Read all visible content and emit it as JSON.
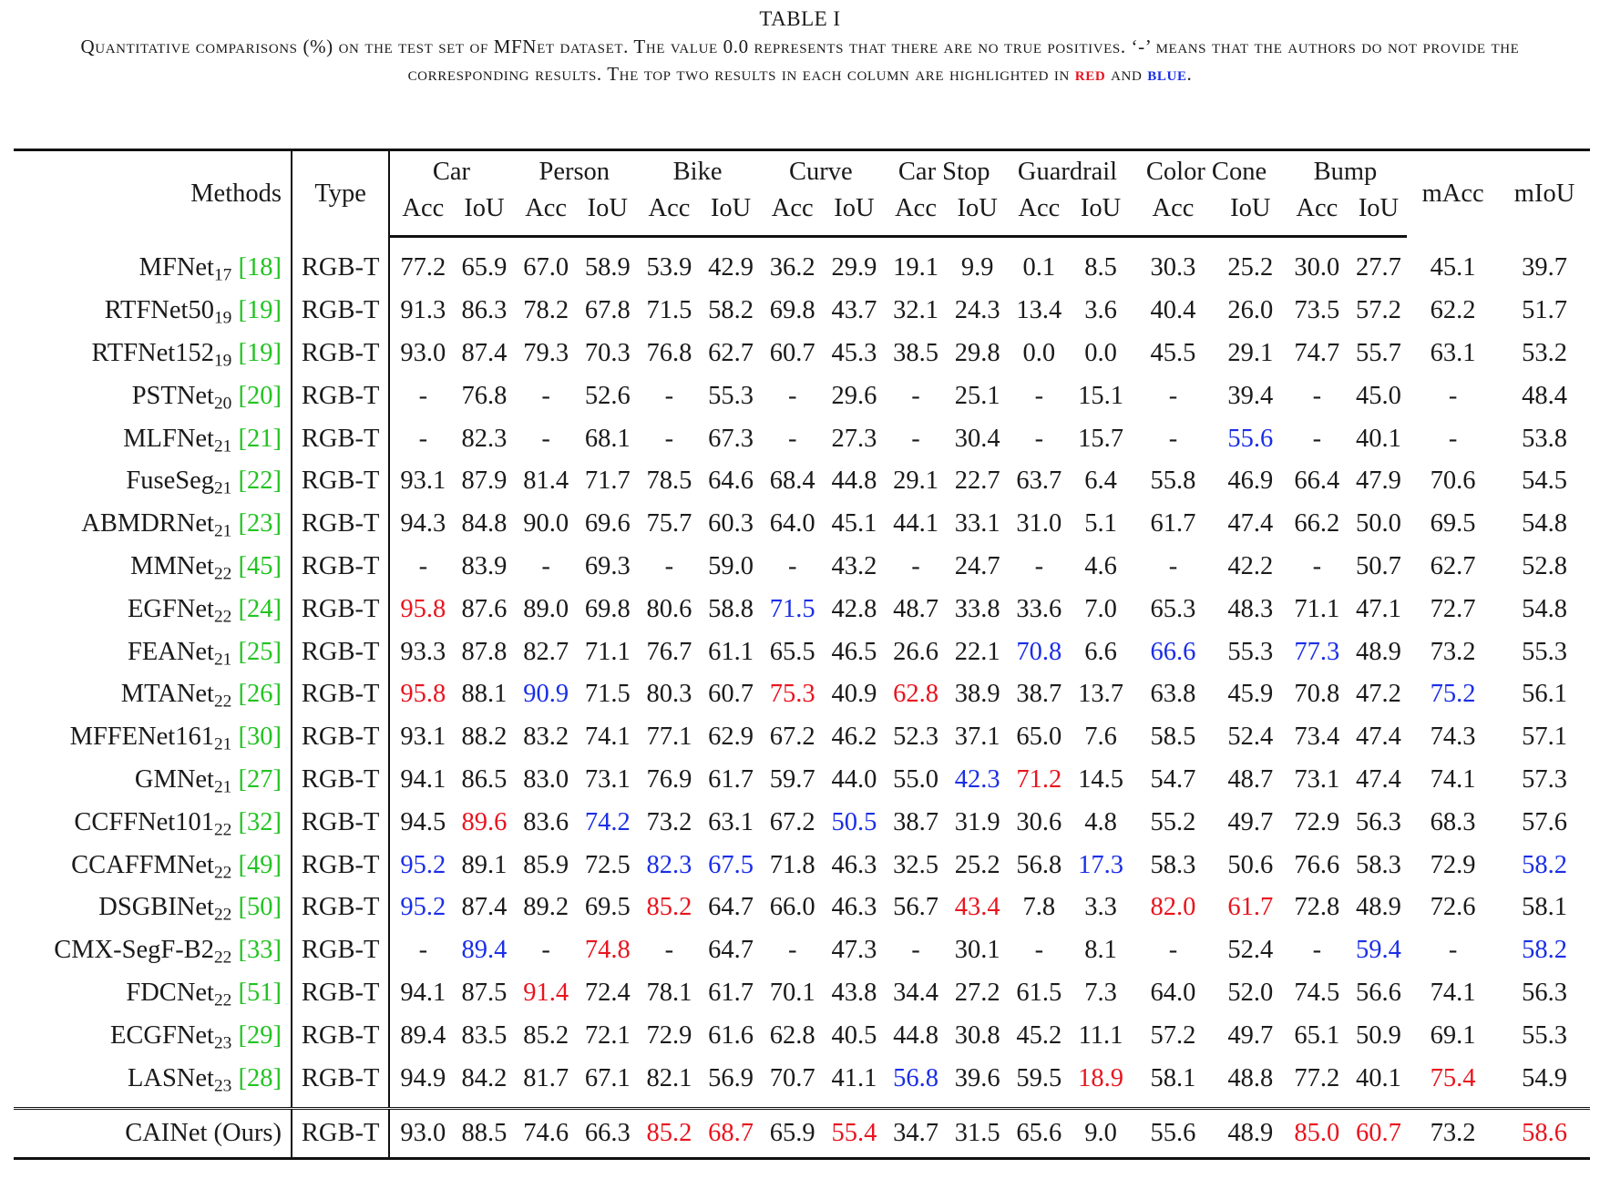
{
  "caption": {
    "label": "TABLE I",
    "text_main": "Quantitative comparisons (%) on the test set of MFNet dataset. The value 0.0 represents that there are no true positives. ‘-’ means that the authors do not provide the corresponding results. The top two results in each column are highlighted in",
    "red_word": "red",
    "and_word": "and",
    "blue_word": "blue",
    "period": "."
  },
  "header": {
    "methods": "Methods",
    "type": "Type",
    "categories": [
      "Car",
      "Person",
      "Bike",
      "Curve",
      "Car Stop",
      "Guardrail",
      "Color Cone",
      "Bump"
    ],
    "sub_acc": "Acc",
    "sub_iou": "IoU",
    "macc": "mAcc",
    "miou": "mIoU"
  },
  "colors": {
    "red": "#e8141e",
    "blue": "#1a2ee6",
    "cite_green": "#22c322"
  },
  "rows": [
    {
      "name": "MFNet",
      "sub": "17",
      "cite": "18",
      "type": "RGB-T",
      "values": [
        "77.2",
        "65.9",
        "67.0",
        "58.9",
        "53.9",
        "42.9",
        "36.2",
        "29.9",
        "19.1",
        "9.9",
        "0.1",
        "8.5",
        "30.3",
        "25.2",
        "30.0",
        "27.7",
        "45.1",
        "39.7"
      ],
      "hl": {}
    },
    {
      "name": "RTFNet50",
      "sub": "19",
      "cite": "19",
      "type": "RGB-T",
      "values": [
        "91.3",
        "86.3",
        "78.2",
        "67.8",
        "71.5",
        "58.2",
        "69.8",
        "43.7",
        "32.1",
        "24.3",
        "13.4",
        "3.6",
        "40.4",
        "26.0",
        "73.5",
        "57.2",
        "62.2",
        "51.7"
      ],
      "hl": {}
    },
    {
      "name": "RTFNet152",
      "sub": "19",
      "cite": "19",
      "type": "RGB-T",
      "values": [
        "93.0",
        "87.4",
        "79.3",
        "70.3",
        "76.8",
        "62.7",
        "60.7",
        "45.3",
        "38.5",
        "29.8",
        "0.0",
        "0.0",
        "45.5",
        "29.1",
        "74.7",
        "55.7",
        "63.1",
        "53.2"
      ],
      "hl": {}
    },
    {
      "name": "PSTNet",
      "sub": "20",
      "cite": "20",
      "type": "RGB-T",
      "values": [
        "-",
        "76.8",
        "-",
        "52.6",
        "-",
        "55.3",
        "-",
        "29.6",
        "-",
        "25.1",
        "-",
        "15.1",
        "-",
        "39.4",
        "-",
        "45.0",
        "-",
        "48.4"
      ],
      "hl": {}
    },
    {
      "name": "MLFNet",
      "sub": "21",
      "cite": "21",
      "type": "RGB-T",
      "values": [
        "-",
        "82.3",
        "-",
        "68.1",
        "-",
        "67.3",
        "-",
        "27.3",
        "-",
        "30.4",
        "-",
        "15.7",
        "-",
        "55.6",
        "-",
        "40.1",
        "-",
        "53.8"
      ],
      "hl": {
        "13": "blue"
      }
    },
    {
      "name": "FuseSeg",
      "sub": "21",
      "cite": "22",
      "type": "RGB-T",
      "values": [
        "93.1",
        "87.9",
        "81.4",
        "71.7",
        "78.5",
        "64.6",
        "68.4",
        "44.8",
        "29.1",
        "22.7",
        "63.7",
        "6.4",
        "55.8",
        "46.9",
        "66.4",
        "47.9",
        "70.6",
        "54.5"
      ],
      "hl": {}
    },
    {
      "name": "ABMDRNet",
      "sub": "21",
      "cite": "23",
      "type": "RGB-T",
      "values": [
        "94.3",
        "84.8",
        "90.0",
        "69.6",
        "75.7",
        "60.3",
        "64.0",
        "45.1",
        "44.1",
        "33.1",
        "31.0",
        "5.1",
        "61.7",
        "47.4",
        "66.2",
        "50.0",
        "69.5",
        "54.8"
      ],
      "hl": {}
    },
    {
      "name": "MMNet",
      "sub": "22",
      "cite": "45",
      "type": "RGB-T",
      "values": [
        "-",
        "83.9",
        "-",
        "69.3",
        "-",
        "59.0",
        "-",
        "43.2",
        "-",
        "24.7",
        "-",
        "4.6",
        "-",
        "42.2",
        "-",
        "50.7",
        "62.7",
        "52.8"
      ],
      "hl": {}
    },
    {
      "name": "EGFNet",
      "sub": "22",
      "cite": "24",
      "type": "RGB-T",
      "values": [
        "95.8",
        "87.6",
        "89.0",
        "69.8",
        "80.6",
        "58.8",
        "71.5",
        "42.8",
        "48.7",
        "33.8",
        "33.6",
        "7.0",
        "65.3",
        "48.3",
        "71.1",
        "47.1",
        "72.7",
        "54.8"
      ],
      "hl": {
        "0": "red",
        "6": "blue"
      }
    },
    {
      "name": "FEANet",
      "sub": "21",
      "cite": "25",
      "type": "RGB-T",
      "values": [
        "93.3",
        "87.8",
        "82.7",
        "71.1",
        "76.7",
        "61.1",
        "65.5",
        "46.5",
        "26.6",
        "22.1",
        "70.8",
        "6.6",
        "66.6",
        "55.3",
        "77.3",
        "48.9",
        "73.2",
        "55.3"
      ],
      "hl": {
        "10": "blue",
        "12": "blue",
        "14": "blue"
      }
    },
    {
      "name": "MTANet",
      "sub": "22",
      "cite": "26",
      "type": "RGB-T",
      "values": [
        "95.8",
        "88.1",
        "90.9",
        "71.5",
        "80.3",
        "60.7",
        "75.3",
        "40.9",
        "62.8",
        "38.9",
        "38.7",
        "13.7",
        "63.8",
        "45.9",
        "70.8",
        "47.2",
        "75.2",
        "56.1"
      ],
      "hl": {
        "0": "red",
        "2": "blue",
        "6": "red",
        "8": "red",
        "16": "blue"
      }
    },
    {
      "name": "MFFENet161",
      "sub": "21",
      "cite": "30",
      "type": "RGB-T",
      "values": [
        "93.1",
        "88.2",
        "83.2",
        "74.1",
        "77.1",
        "62.9",
        "67.2",
        "46.2",
        "52.3",
        "37.1",
        "65.0",
        "7.6",
        "58.5",
        "52.4",
        "73.4",
        "47.4",
        "74.3",
        "57.1"
      ],
      "hl": {}
    },
    {
      "name": "GMNet",
      "sub": "21",
      "cite": "27",
      "type": "RGB-T",
      "values": [
        "94.1",
        "86.5",
        "83.0",
        "73.1",
        "76.9",
        "61.7",
        "59.7",
        "44.0",
        "55.0",
        "42.3",
        "71.2",
        "14.5",
        "54.7",
        "48.7",
        "73.1",
        "47.4",
        "74.1",
        "57.3"
      ],
      "hl": {
        "9": "blue",
        "10": "red"
      }
    },
    {
      "name": "CCFFNet101",
      "sub": "22",
      "cite": "32",
      "type": "RGB-T",
      "values": [
        "94.5",
        "89.6",
        "83.6",
        "74.2",
        "73.2",
        "63.1",
        "67.2",
        "50.5",
        "38.7",
        "31.9",
        "30.6",
        "4.8",
        "55.2",
        "49.7",
        "72.9",
        "56.3",
        "68.3",
        "57.6"
      ],
      "hl": {
        "1": "red",
        "3": "blue",
        "7": "blue"
      }
    },
    {
      "name": "CCAFFMNet",
      "sub": "22",
      "cite": "49",
      "type": "RGB-T",
      "values": [
        "95.2",
        "89.1",
        "85.9",
        "72.5",
        "82.3",
        "67.5",
        "71.8",
        "46.3",
        "32.5",
        "25.2",
        "56.8",
        "17.3",
        "58.3",
        "50.6",
        "76.6",
        "58.3",
        "72.9",
        "58.2"
      ],
      "hl": {
        "0": "blue",
        "4": "blue",
        "5": "blue",
        "11": "blue",
        "17": "blue"
      }
    },
    {
      "name": "DSGBINet",
      "sub": "22",
      "cite": "50",
      "type": "RGB-T",
      "values": [
        "95.2",
        "87.4",
        "89.2",
        "69.5",
        "85.2",
        "64.7",
        "66.0",
        "46.3",
        "56.7",
        "43.4",
        "7.8",
        "3.3",
        "82.0",
        "61.7",
        "72.8",
        "48.9",
        "72.6",
        "58.1"
      ],
      "hl": {
        "0": "blue",
        "4": "red",
        "9": "red",
        "12": "red",
        "13": "red"
      }
    },
    {
      "name": "CMX-SegF-B2",
      "sub": "22",
      "cite": "33",
      "type": "RGB-T",
      "values": [
        "-",
        "89.4",
        "-",
        "74.8",
        "-",
        "64.7",
        "-",
        "47.3",
        "-",
        "30.1",
        "-",
        "8.1",
        "-",
        "52.4",
        "-",
        "59.4",
        "-",
        "58.2"
      ],
      "hl": {
        "1": "blue",
        "3": "red",
        "15": "blue",
        "17": "blue"
      }
    },
    {
      "name": "FDCNet",
      "sub": "22",
      "cite": "51",
      "type": "RGB-T",
      "values": [
        "94.1",
        "87.5",
        "91.4",
        "72.4",
        "78.1",
        "61.7",
        "70.1",
        "43.8",
        "34.4",
        "27.2",
        "61.5",
        "7.3",
        "64.0",
        "52.0",
        "74.5",
        "56.6",
        "74.1",
        "56.3"
      ],
      "hl": {
        "2": "red"
      }
    },
    {
      "name": "ECGFNet",
      "sub": "23",
      "cite": "29",
      "type": "RGB-T",
      "values": [
        "89.4",
        "83.5",
        "85.2",
        "72.1",
        "72.9",
        "61.6",
        "62.8",
        "40.5",
        "44.8",
        "30.8",
        "45.2",
        "11.1",
        "57.2",
        "49.7",
        "65.1",
        "50.9",
        "69.1",
        "55.3"
      ],
      "hl": {}
    },
    {
      "name": "LASNet",
      "sub": "23",
      "cite": "28",
      "type": "RGB-T",
      "values": [
        "94.9",
        "84.2",
        "81.7",
        "67.1",
        "82.1",
        "56.9",
        "70.7",
        "41.1",
        "56.8",
        "39.6",
        "59.5",
        "18.9",
        "58.1",
        "48.8",
        "77.2",
        "40.1",
        "75.4",
        "54.9"
      ],
      "hl": {
        "8": "blue",
        "11": "red",
        "16": "red"
      }
    }
  ],
  "ours": {
    "name": "CAINet (Ours)",
    "type": "RGB-T",
    "values": [
      "93.0",
      "88.5",
      "74.6",
      "66.3",
      "85.2",
      "68.7",
      "65.9",
      "55.4",
      "34.7",
      "31.5",
      "65.6",
      "9.0",
      "55.6",
      "48.9",
      "85.0",
      "60.7",
      "73.2",
      "58.6"
    ],
    "hl": {
      "4": "red",
      "5": "red",
      "7": "red",
      "14": "red",
      "15": "red",
      "17": "red"
    }
  }
}
